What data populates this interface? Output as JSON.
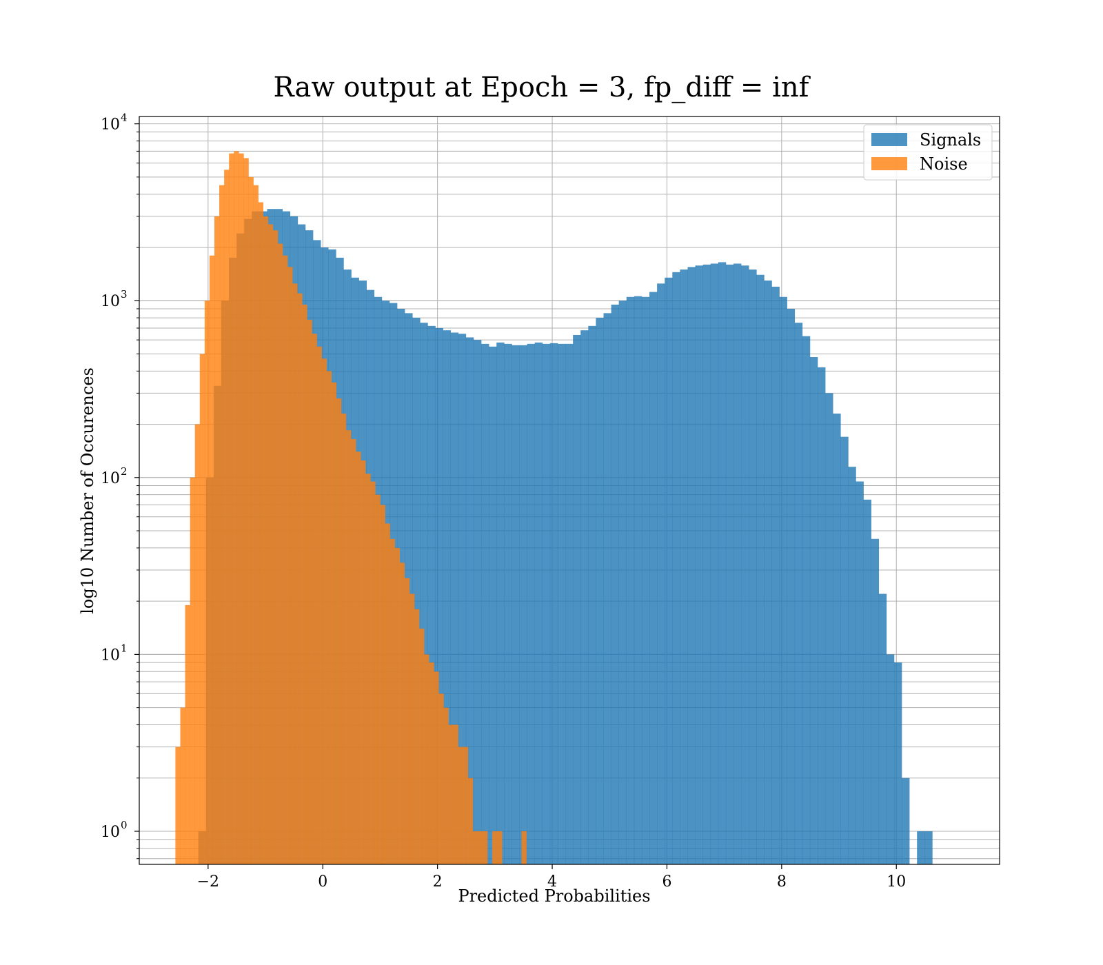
{
  "chart_data": {
    "type": "bar",
    "title": "Raw output at Epoch = 3, fp_diff = inf",
    "xlabel": "Predicted Probabilities",
    "ylabel": "log10 Number of Occurences",
    "xlim": [
      -3.2,
      11.8
    ],
    "ylim": [
      0.65,
      11000
    ],
    "yscale": "log",
    "x_ticks": [
      -2,
      0,
      2,
      4,
      6,
      8,
      10
    ],
    "y_ticks": [
      {
        "base": "10",
        "exp": "0",
        "value": 1
      },
      {
        "base": "10",
        "exp": "1",
        "value": 10
      },
      {
        "base": "10",
        "exp": "2",
        "value": 100
      },
      {
        "base": "10",
        "exp": "3",
        "value": 1000
      },
      {
        "base": "10",
        "exp": "4",
        "value": 10000
      }
    ],
    "grid": true,
    "legend_position": "top-right",
    "series": [
      {
        "name": "Signals",
        "color": "#1f77b4",
        "bin_start": -2.17,
        "bin_width": 0.1333,
        "values": [
          1,
          100,
          330,
          1000,
          1750,
          2400,
          2900,
          3200,
          3200,
          3300,
          3300,
          3200,
          3000,
          2700,
          2500,
          2200,
          2000,
          1950,
          1750,
          1500,
          1350,
          1300,
          1150,
          1050,
          1000,
          970,
          900,
          850,
          800,
          750,
          720,
          700,
          680,
          660,
          650,
          620,
          600,
          570,
          550,
          580,
          570,
          560,
          560,
          570,
          580,
          570,
          575,
          570,
          570,
          640,
          680,
          720,
          800,
          850,
          950,
          1000,
          1050,
          1060,
          1050,
          1120,
          1250,
          1350,
          1450,
          1500,
          1550,
          1580,
          1600,
          1620,
          1650,
          1600,
          1620,
          1580,
          1500,
          1400,
          1300,
          1200,
          1050,
          900,
          750,
          630,
          480,
          420,
          300,
          230,
          170,
          115,
          95,
          75,
          45,
          22,
          10,
          9,
          2,
          0,
          1,
          1
        ]
      },
      {
        "name": "Noise",
        "color": "#ff7f0e",
        "bin_start": -2.57,
        "bin_width": 0.085,
        "values": [
          3,
          5,
          19,
          100,
          200,
          500,
          1000,
          1800,
          3000,
          4500,
          5500,
          6800,
          7000,
          6800,
          6400,
          5000,
          4500,
          3600,
          3000,
          2700,
          2500,
          2100,
          1800,
          1550,
          1250,
          1100,
          950,
          780,
          650,
          550,
          470,
          400,
          345,
          280,
          230,
          185,
          165,
          140,
          125,
          105,
          95,
          80,
          70,
          55,
          45,
          40,
          33,
          27,
          22,
          18,
          14,
          10,
          9,
          8,
          6,
          5,
          4,
          4,
          3,
          3,
          2,
          1,
          1,
          1,
          0,
          1,
          1,
          0,
          0,
          0,
          0,
          1
        ]
      }
    ]
  }
}
